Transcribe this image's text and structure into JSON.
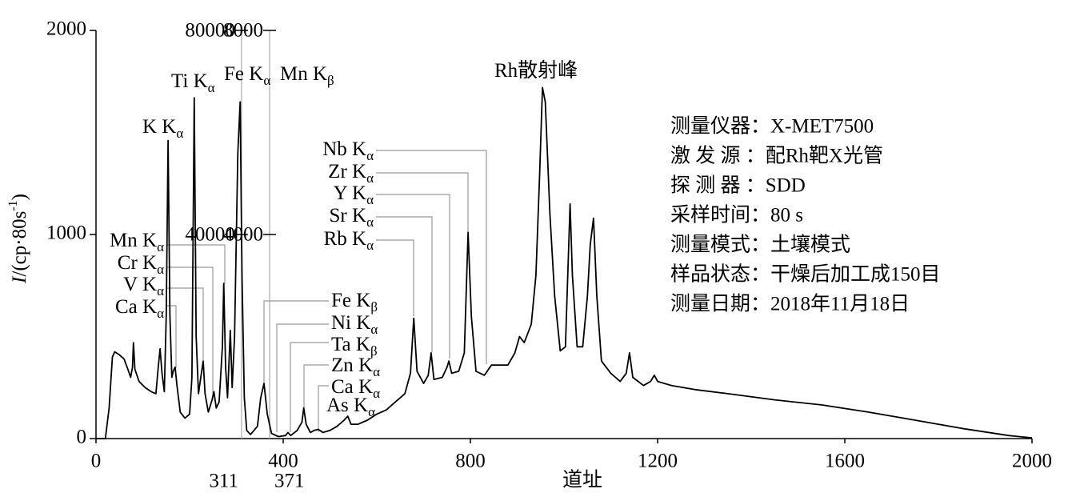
{
  "chart_data": {
    "type": "line",
    "color": "#000000",
    "xlabel": "道址",
    "ylabel": {
      "italic": "I",
      "text": "/(cp·80s",
      "sup": "-1",
      "end": ")"
    },
    "xlim": [
      0,
      2000
    ],
    "xticks": [
      0,
      400,
      800,
      1200,
      1600,
      2000
    ],
    "ylim": [
      0,
      2000
    ],
    "yticks": [
      0,
      1000,
      2000
    ],
    "inset_axes": [
      {
        "x": 311,
        "ylim": [
          0,
          80000
        ],
        "yticks": [
          40000,
          80000
        ]
      },
      {
        "x": 371,
        "ylim": [
          0,
          8000
        ],
        "yticks": [
          4000,
          8000
        ]
      }
    ],
    "x": [
      0,
      20,
      28,
      35,
      40,
      50,
      60,
      68,
      74,
      78,
      80,
      83,
      92,
      105,
      118,
      128,
      133,
      137,
      141,
      146,
      150,
      154,
      158,
      162,
      165,
      169,
      173,
      180,
      190,
      200,
      205,
      210,
      214,
      219,
      224,
      229,
      233,
      240,
      248,
      252,
      257,
      263,
      270,
      273,
      277,
      281,
      287,
      291,
      296,
      303,
      308,
      312,
      317,
      322,
      330,
      345,
      352,
      359,
      366,
      375,
      390,
      405,
      410,
      416,
      430,
      440,
      444,
      449,
      458,
      466,
      475,
      485,
      500,
      515,
      530,
      538,
      545,
      560,
      580,
      600,
      620,
      640,
      660,
      672,
      679,
      686,
      700,
      710,
      716,
      722,
      740,
      750,
      754,
      760,
      775,
      787,
      795,
      802,
      812,
      830,
      845,
      860,
      880,
      895,
      905,
      915,
      930,
      940,
      948,
      954,
      960,
      970,
      980,
      992,
      1003,
      1008,
      1013,
      1018,
      1028,
      1040,
      1050,
      1056,
      1063,
      1070,
      1080,
      1100,
      1120,
      1133,
      1140,
      1147,
      1170,
      1185,
      1193,
      1200,
      1230,
      1280,
      1350,
      1450,
      1550,
      1650,
      1750,
      1850,
      1950,
      2000
    ],
    "values": [
      0,
      0,
      150,
      400,
      425,
      410,
      390,
      340,
      300,
      350,
      470,
      340,
      280,
      250,
      230,
      220,
      350,
      440,
      320,
      230,
      600,
      1460,
      600,
      300,
      330,
      350,
      260,
      130,
      100,
      120,
      300,
      1670,
      500,
      220,
      300,
      380,
      220,
      130,
      190,
      230,
      150,
      180,
      450,
      760,
      350,
      200,
      530,
      250,
      500,
      1400,
      1650,
      800,
      200,
      40,
      20,
      60,
      200,
      270,
      120,
      25,
      10,
      15,
      30,
      15,
      40,
      80,
      150,
      70,
      30,
      40,
      45,
      30,
      40,
      60,
      90,
      110,
      70,
      70,
      90,
      120,
      140,
      180,
      220,
      320,
      590,
      330,
      270,
      310,
      420,
      290,
      300,
      350,
      380,
      320,
      330,
      420,
      1010,
      600,
      330,
      310,
      360,
      360,
      360,
      420,
      500,
      470,
      560,
      800,
      1300,
      1720,
      1650,
      1100,
      700,
      430,
      450,
      800,
      1150,
      800,
      450,
      450,
      700,
      950,
      1080,
      700,
      380,
      320,
      280,
      320,
      420,
      300,
      260,
      280,
      310,
      280,
      260,
      240,
      220,
      190,
      165,
      130,
      90,
      50,
      15,
      3
    ],
    "annotations": [
      {
        "text": "K K",
        "sub": "α"
      },
      {
        "text": "Ti K",
        "sub": "α"
      },
      {
        "text": "Fe K",
        "sub": "α"
      },
      {
        "text": "Mn K",
        "sub": "β"
      },
      {
        "text": "Rh散射峰"
      },
      {
        "text": "Nb K",
        "sub": "α"
      },
      {
        "text": "Zr K",
        "sub": "α"
      },
      {
        "text": "Y K",
        "sub": "α"
      },
      {
        "text": "Sr K",
        "sub": "α"
      },
      {
        "text": "Rb K",
        "sub": "α"
      },
      {
        "text": "Mn K",
        "sub": "α"
      },
      {
        "text": "Cr K",
        "sub": "α"
      },
      {
        "text": "V K",
        "sub": "α"
      },
      {
        "text": "Ca K",
        "sub": "α"
      },
      {
        "text": "Fe K",
        "sub": "β"
      },
      {
        "text": "Ni K",
        "sub": "α"
      },
      {
        "text": "Ta K",
        "sub": "β"
      },
      {
        "text": "Zn K",
        "sub": "α"
      },
      {
        "text": "Ca K",
        "sub": "α"
      },
      {
        "text": "As K",
        "sub": "α"
      }
    ],
    "info": [
      "测量仪器：X-MET7500",
      "激 发 源 ：配Rh靶X光管",
      "探 测 器 ：SDD",
      "采样时间：80 s",
      "测量模式：土壤模式",
      "样品状态：干燥后加工成150目",
      "测量日期：2018年11月18日"
    ]
  }
}
